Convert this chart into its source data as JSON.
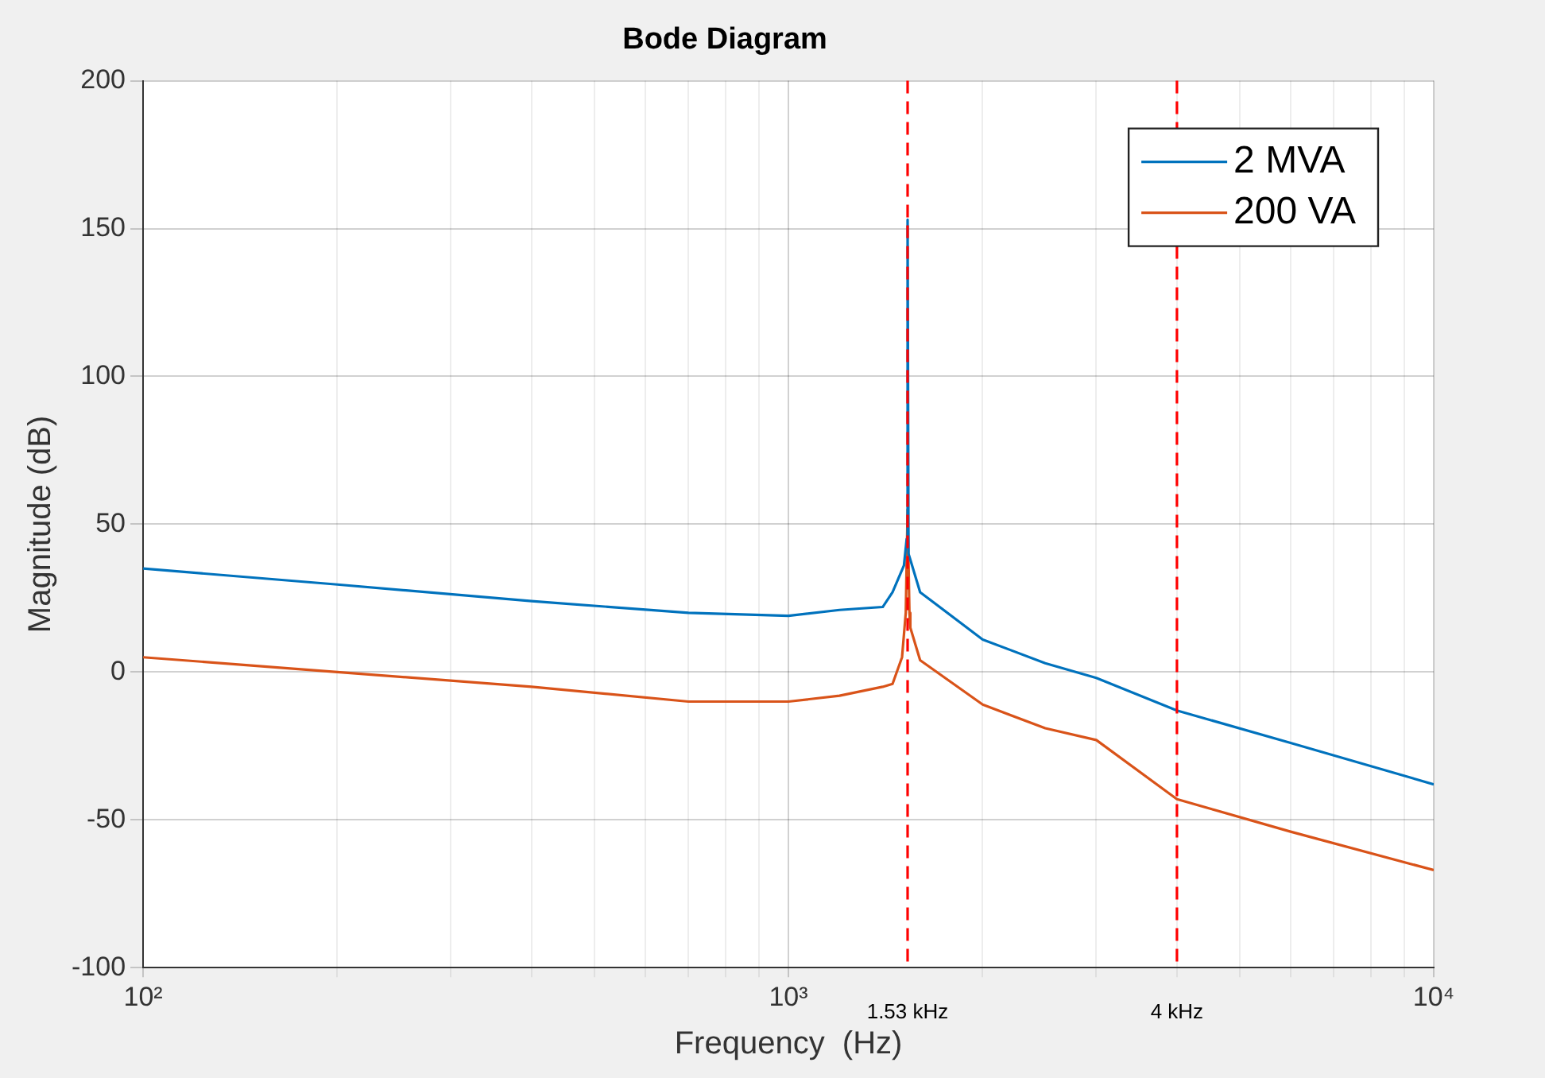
{
  "chart_data": {
    "type": "line",
    "title": "Bode Diagram",
    "xlabel": "Frequency  (Hz)",
    "ylabel": "Magnitude (dB)",
    "log": "x",
    "xlim": [
      100,
      10000
    ],
    "xticks": [
      {
        "value": 100,
        "label": "10²"
      },
      {
        "value": 200,
        "label": null
      },
      {
        "value": 300,
        "label": null
      },
      {
        "value": 400,
        "label": null
      },
      {
        "value": 500,
        "label": null
      },
      {
        "value": 600,
        "label": null
      },
      {
        "value": 700,
        "label": null
      },
      {
        "value": 800,
        "label": null
      },
      {
        "value": 900,
        "label": null
      },
      {
        "value": 1000,
        "label": "10³"
      },
      {
        "value": 2000,
        "label": null
      },
      {
        "value": 3000,
        "label": null
      },
      {
        "value": 4000,
        "label": null
      },
      {
        "value": 5000,
        "label": null
      },
      {
        "value": 6000,
        "label": null
      },
      {
        "value": 7000,
        "label": null
      },
      {
        "value": 8000,
        "label": null
      },
      {
        "value": 9000,
        "label": null
      },
      {
        "value": 10000,
        "label": "10⁴"
      }
    ],
    "ylim": [
      -100,
      200
    ],
    "yticks": [
      -100,
      -50,
      0,
      50,
      100,
      150,
      200
    ],
    "grid": true,
    "legend": "top right",
    "marker": "none",
    "line_style": "solid",
    "series": [
      {
        "name": "2 MVA",
        "color": "#0072bd",
        "x": [
          100,
          200,
          400,
          700,
          1000,
          1200,
          1400,
          1450,
          1510,
          1525,
          1530,
          1535,
          1545,
          1600,
          2000,
          2500,
          3000,
          4000,
          6000,
          10000
        ],
        "values": [
          35,
          29.6,
          24,
          20,
          19,
          21,
          22,
          27,
          36,
          45,
          153,
          40,
          38,
          27,
          11,
          3,
          -2,
          -13,
          -24,
          -38
        ]
      },
      {
        "name": "200 VA",
        "color": "#d95319",
        "x": [
          100,
          200,
          400,
          700,
          1000,
          1200,
          1400,
          1450,
          1500,
          1520,
          1530,
          1540,
          1545,
          1600,
          2000,
          2500,
          3000,
          4000,
          6000,
          10000
        ],
        "values": [
          5,
          0,
          -5,
          -10,
          -10,
          -8,
          -5,
          -4,
          5,
          20,
          55,
          20,
          15,
          4,
          -11,
          -19,
          -23,
          -43,
          -54,
          -67
        ]
      }
    ],
    "ref_lines": [
      {
        "axis": "x",
        "value": 1530,
        "label": "1.53 kHz",
        "color": "#ff0000",
        "line_style": "dashed"
      },
      {
        "axis": "x",
        "value": 4000,
        "label": "4 kHz",
        "color": "#ff0000",
        "line_style": "dashed"
      }
    ]
  }
}
